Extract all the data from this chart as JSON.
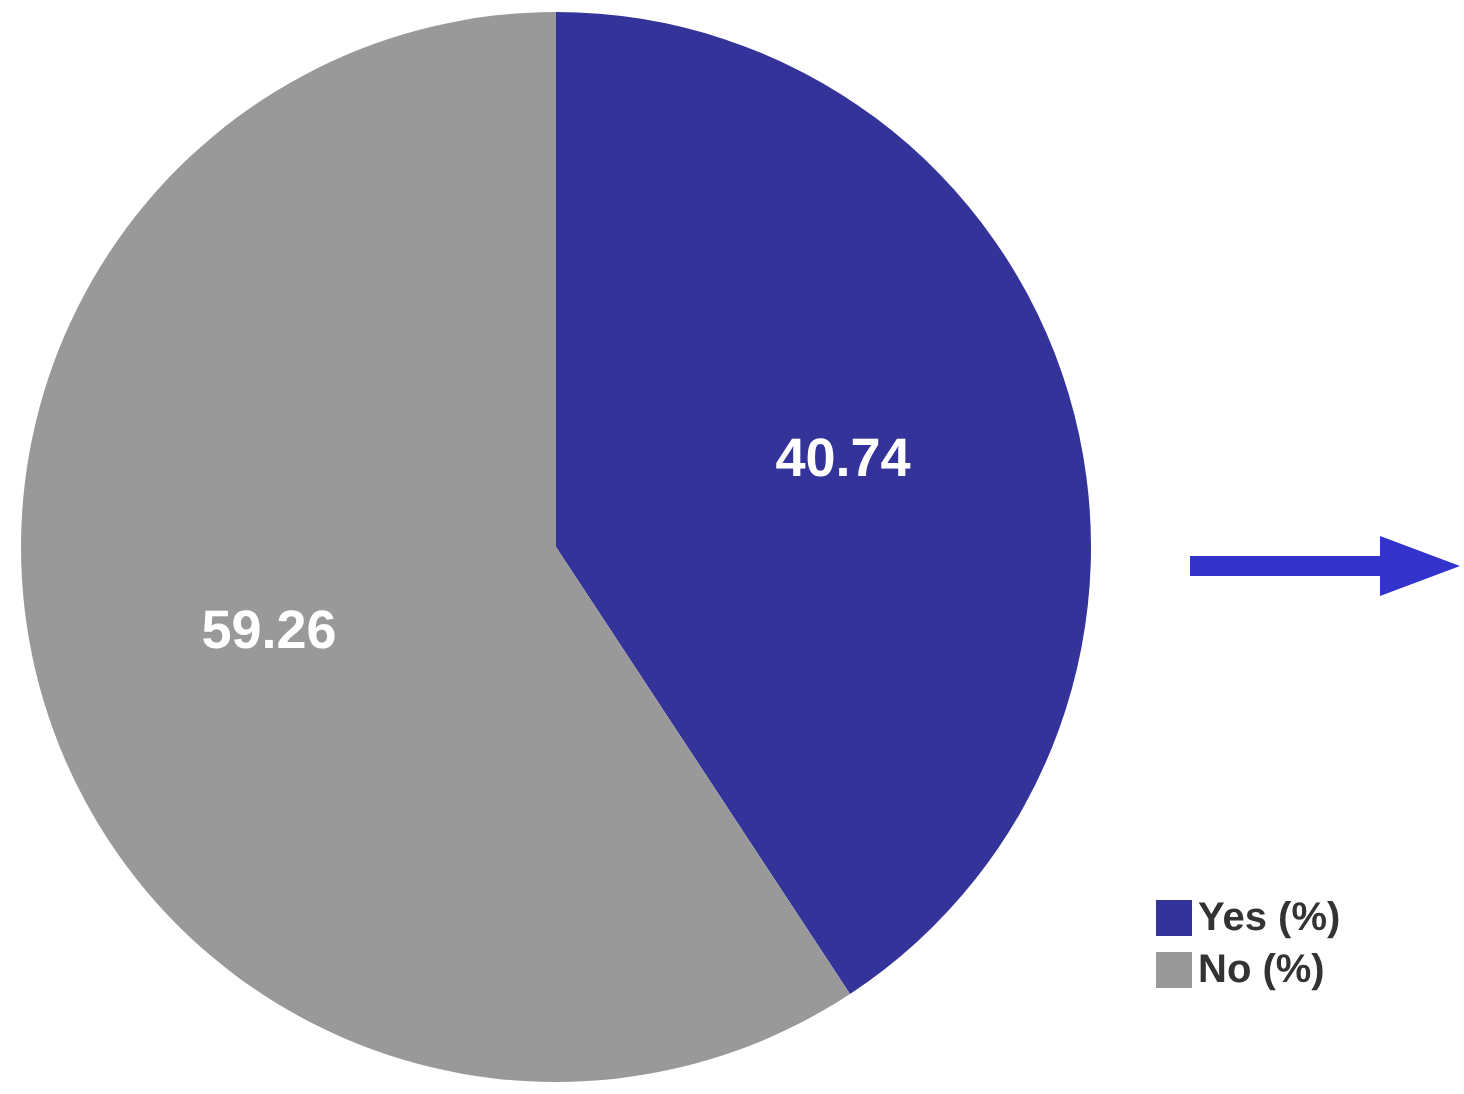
{
  "chart_data": {
    "type": "pie",
    "categories": [
      "Yes (%)",
      "No (%)"
    ],
    "values": [
      40.74,
      59.26
    ],
    "colors": [
      "#333399",
      "#999999"
    ],
    "data_labels": true,
    "legend": "bottom right"
  }
}
